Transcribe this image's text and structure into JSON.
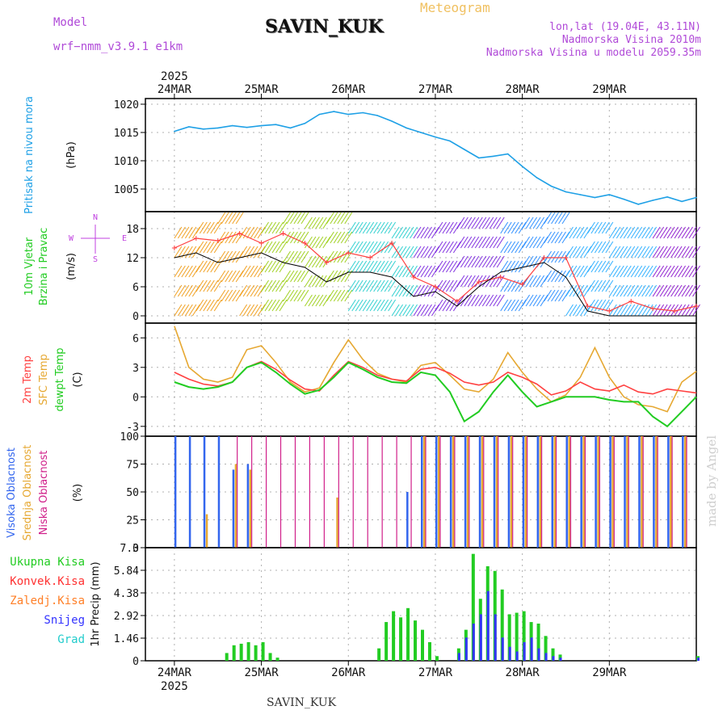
{
  "header": {
    "model_label": "Model",
    "model_name": "wrf−nmm_v3.9.1  e1km",
    "station": "SAVIN_KUK",
    "app_title": "Meteogram",
    "coords": "lon,lat (19.04E, 43.11N)",
    "elevation": "Nadmorska Visina 2010m",
    "model_elevation": "Nadmorska Visina u modelu 2059.35m"
  },
  "footer": {
    "station": "SAVIN_KUK",
    "credit": "made by Angel"
  },
  "colors": {
    "pressure": "#1ea0e6",
    "t2m": "#ff4040",
    "sfc": "#e6a832",
    "dew": "#22cc22",
    "high_cloud": "#3366ee",
    "mid_cloud": "#e6a832",
    "low_cloud": "#d0208a",
    "total_precip": "#22cc22",
    "conv_precip": "#ff3030",
    "frz_precip": "#ff7f27",
    "snow": "#3333ff",
    "graupel": "#22cccc",
    "axis_label_purple": "#c040e0"
  },
  "chart_data": [
    {
      "type": "line",
      "title": "",
      "ylabel": "(hPa)",
      "side_labels": [
        "Pritisak na nivou mora"
      ],
      "x_top_labels": [
        "24MAR",
        "25MAR",
        "26MAR",
        "27MAR",
        "28MAR",
        "29MAR"
      ],
      "x_top_year": "2025",
      "yticks": [
        1005,
        1010,
        1015,
        1020
      ],
      "ylim": [
        1001,
        1021
      ],
      "x_hours": [
        0,
        4,
        8,
        12,
        16,
        20,
        24,
        28,
        32,
        36,
        40,
        44,
        48,
        52,
        56,
        60,
        64,
        68,
        72,
        76,
        80,
        84,
        88,
        92,
        96,
        100,
        104,
        108,
        112,
        116,
        120,
        124,
        128,
        132,
        136,
        140,
        144
      ],
      "series": [
        {
          "values": [
            1015.2,
            1016,
            1015.6,
            1015.8,
            1016.2,
            1015.9,
            1016.2,
            1016.4,
            1015.8,
            1016.6,
            1018.2,
            1018.7,
            1018.2,
            1018.5,
            1018.0,
            1017.0,
            1015.8,
            1015.0,
            1014.2,
            1013.5,
            1012.0,
            1010.5,
            1010.8,
            1011.2,
            1009.0,
            1007.0,
            1005.5,
            1004.5,
            1004.0,
            1003.5,
            1004.0,
            1003.2,
            1002.3,
            1003.0,
            1003.6,
            1002.8,
            1003.5
          ]
        }
      ]
    },
    {
      "type": "line",
      "title": "",
      "ylabel": "(m/s)",
      "side_labels": [
        "10m Vjetar",
        "Brzina i Pravac"
      ],
      "compass_labels": [
        "N",
        "E",
        "W",
        "S"
      ],
      "yticks": [
        0,
        6,
        12,
        18
      ],
      "ylim": [
        -1.5,
        21.5
      ],
      "x_hours": [
        0,
        6,
        12,
        18,
        24,
        30,
        36,
        42,
        48,
        54,
        60,
        66,
        72,
        78,
        84,
        90,
        96,
        102,
        108,
        114,
        120,
        126,
        132,
        138,
        144
      ],
      "series": [
        {
          "name": "speed",
          "values": [
            14,
            16,
            15.5,
            17,
            15,
            17,
            15,
            11,
            13,
            12,
            15,
            8,
            6,
            3,
            7,
            8,
            6.5,
            12,
            12,
            2,
            1,
            3,
            1.5,
            1,
            2
          ]
        },
        {
          "name": "direction_band",
          "values": [
            12,
            13,
            11,
            12,
            13,
            11,
            10,
            7,
            9,
            9,
            8,
            4,
            5,
            2,
            6,
            9,
            10,
            11,
            8,
            1,
            0,
            0,
            0,
            0,
            0
          ]
        }
      ],
      "wind_direction_regimes": [
        "SW",
        "SW",
        "S",
        "N",
        "NE",
        "NE",
        "W"
      ]
    },
    {
      "type": "line",
      "title": "",
      "ylabel": "(C)",
      "side_labels": [
        "2m Temp",
        "SFC Temp",
        "dewpt Temp"
      ],
      "yticks": [
        -3,
        0,
        3,
        6
      ],
      "ylim": [
        -4,
        7.5
      ],
      "x_hours": [
        0,
        4,
        8,
        12,
        16,
        20,
        24,
        28,
        32,
        36,
        40,
        44,
        48,
        52,
        56,
        60,
        64,
        68,
        72,
        76,
        80,
        84,
        88,
        92,
        96,
        100,
        104,
        108,
        112,
        116,
        120,
        124,
        128,
        132,
        136,
        140,
        144
      ],
      "series": [
        {
          "name": "2m Temp",
          "values": [
            2.5,
            1.8,
            1.3,
            1.1,
            1.5,
            3.0,
            3.6,
            2.8,
            1.7,
            0.8,
            0.6,
            2.2,
            3.6,
            3.0,
            2.2,
            1.8,
            1.6,
            2.8,
            3.0,
            2.4,
            1.5,
            1.2,
            1.5,
            2.5,
            2.0,
            1.3,
            0.2,
            0.6,
            1.5,
            0.8,
            0.6,
            1.2,
            0.5,
            0.3,
            0.8,
            0.6,
            0.4
          ]
        },
        {
          "name": "SFC Temp",
          "values": [
            7.2,
            3.0,
            1.8,
            1.5,
            2.0,
            4.8,
            5.2,
            3.5,
            1.5,
            0.5,
            0.9,
            3.5,
            5.8,
            3.8,
            2.4,
            1.8,
            1.5,
            3.2,
            3.5,
            2.2,
            0.8,
            0.5,
            1.8,
            4.5,
            2.5,
            0.8,
            -0.5,
            0.2,
            2.0,
            5.0,
            2.0,
            0.0,
            -0.8,
            -1.0,
            -1.5,
            1.5,
            2.6
          ]
        },
        {
          "name": "dewpt Temp",
          "values": [
            1.5,
            1.0,
            0.8,
            1.0,
            1.5,
            3.0,
            3.5,
            2.5,
            1.3,
            0.3,
            0.7,
            2.0,
            3.5,
            2.8,
            2.0,
            1.5,
            1.4,
            2.5,
            2.2,
            0.5,
            -2.5,
            -1.5,
            0.5,
            2.2,
            0.5,
            -1.0,
            -0.5,
            0.0,
            0.0,
            0.0,
            -0.3,
            -0.5,
            -0.5,
            -2.0,
            -3.0,
            -1.5,
            0.0
          ]
        }
      ]
    },
    {
      "type": "bar",
      "title": "",
      "ylabel": "(%)",
      "side_labels": [
        "Visoka Oblacnost",
        "Srednja Oblacnost",
        "Niska Oblacnost"
      ],
      "yticks": [
        0,
        25,
        50,
        75,
        100
      ],
      "ylim": [
        0,
        100
      ],
      "x_hours": [
        0,
        4,
        8,
        12,
        16,
        20,
        24,
        28,
        32,
        36,
        40,
        44,
        48,
        52,
        56,
        60,
        64,
        68,
        72,
        76,
        80,
        84,
        88,
        92,
        96,
        100,
        104,
        108,
        112,
        116,
        120,
        124,
        128,
        132,
        136,
        140
      ],
      "series": [
        {
          "name": "Visoka Oblacnost",
          "values": [
            100,
            100,
            100,
            100,
            70,
            75,
            0,
            0,
            0,
            0,
            0,
            0,
            0,
            0,
            0,
            0,
            50,
            100,
            100,
            100,
            100,
            100,
            100,
            100,
            100,
            100,
            100,
            100,
            100,
            100,
            100,
            100,
            100,
            100,
            100,
            100
          ]
        },
        {
          "name": "Srednja Oblacnost",
          "values": [
            0,
            0,
            30,
            0,
            75,
            70,
            0,
            0,
            0,
            0,
            0,
            45,
            0,
            0,
            0,
            0,
            0,
            100,
            100,
            100,
            100,
            100,
            100,
            100,
            100,
            100,
            100,
            100,
            100,
            100,
            100,
            100,
            100,
            100,
            100,
            100
          ]
        },
        {
          "name": "Niska Oblacnost",
          "values": [
            0,
            0,
            0,
            0,
            100,
            100,
            100,
            100,
            100,
            100,
            100,
            100,
            100,
            100,
            100,
            100,
            100,
            100,
            100,
            100,
            100,
            100,
            100,
            100,
            100,
            100,
            100,
            100,
            100,
            100,
            100,
            100,
            100,
            100,
            100,
            100
          ]
        }
      ]
    },
    {
      "type": "bar",
      "title": "",
      "ylabel": "1hr Precip (mm)",
      "legend": [
        "Ukupna Kisa",
        "Konvek.Kisa",
        "Zaledj.Kisa",
        "Snijeg",
        "Grad"
      ],
      "yticks": [
        0,
        1.46,
        2.92,
        4.38,
        5.84,
        7.3
      ],
      "ylim": [
        0,
        7.3
      ],
      "x_bottom_labels": [
        "24MAR",
        "25MAR",
        "26MAR",
        "27MAR",
        "28MAR",
        "29MAR"
      ],
      "x_bottom_year": "2025",
      "x_hours": [
        14,
        16,
        18,
        20,
        22,
        24,
        26,
        28,
        56,
        58,
        60,
        62,
        64,
        66,
        68,
        70,
        72,
        78,
        80,
        82,
        84,
        86,
        88,
        90,
        92,
        94,
        96,
        98,
        100,
        102,
        104,
        106,
        144
      ],
      "series": [
        {
          "name": "Ukupna Kisa",
          "values": [
            0.5,
            1.0,
            1.1,
            1.2,
            1.0,
            1.2,
            0.5,
            0.2,
            0.8,
            2.5,
            3.2,
            2.8,
            3.4,
            2.6,
            2.0,
            1.2,
            0.3,
            0.8,
            2.0,
            6.9,
            4.0,
            6.1,
            5.8,
            4.6,
            3.0,
            3.1,
            3.2,
            2.5,
            2.4,
            1.6,
            0.8,
            0.4,
            0.3
          ]
        },
        {
          "name": "Snijeg",
          "values": [
            0,
            0,
            0,
            0,
            0,
            0,
            0,
            0,
            0,
            0,
            0,
            0,
            0,
            0,
            0,
            0,
            0,
            0.5,
            1.5,
            2.4,
            3.0,
            4.5,
            3.0,
            1.5,
            0.9,
            0.6,
            1.2,
            1.5,
            0.8,
            0.5,
            0.3,
            0.2,
            0.2
          ]
        }
      ]
    }
  ]
}
